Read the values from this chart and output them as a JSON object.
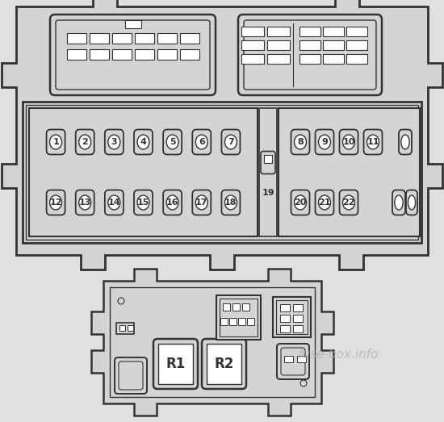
{
  "bg_color": "#d4d4d4",
  "line_color": "#333333",
  "white_fill": "#ffffff",
  "fuse_labels_row1": [
    "1",
    "2",
    "3",
    "4",
    "5",
    "6",
    "7"
  ],
  "fuse_labels_row2": [
    "12",
    "13",
    "14",
    "15",
    "16",
    "17",
    "18"
  ],
  "fuse_labels_row3": [
    "8",
    "9",
    "10",
    "11"
  ],
  "fuse_labels_row4": [
    "20",
    "21",
    "22"
  ],
  "fuse_19": "19",
  "watermark": "fuse-box.info",
  "fig_w": 5.5,
  "fig_h": 5.23,
  "dpi": 100
}
